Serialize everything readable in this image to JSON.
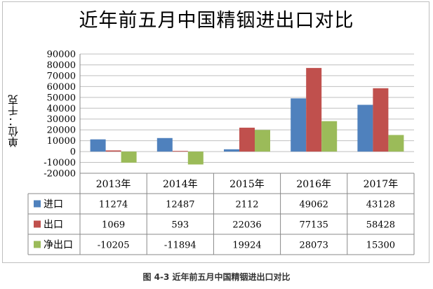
{
  "chart_data": {
    "type": "bar",
    "title": "近年前五月中国精铟进出口对比",
    "ylabel": "单位：千克",
    "ylim": [
      -20000,
      90000
    ],
    "yticks": [
      "90000",
      "80000",
      "70000",
      "60000",
      "50000",
      "40000",
      "30000",
      "20000",
      "10000",
      "0",
      "-10000",
      "-20000"
    ],
    "categories": [
      "2013年",
      "2014年",
      "2015年",
      "2016年",
      "2017年"
    ],
    "grid": true,
    "legend": "data-table",
    "series": [
      {
        "name": "进口",
        "color": "#4f81bd",
        "values": [
          11274,
          12487,
          2112,
          49062,
          43128
        ],
        "labels": [
          "11274",
          "12487",
          "2112",
          "49062",
          "43128"
        ]
      },
      {
        "name": "出口",
        "color": "#c0504d",
        "values": [
          1069,
          593,
          22036,
          77135,
          58428
        ],
        "labels": [
          "1069",
          "593",
          "22036",
          "77135",
          "58428"
        ]
      },
      {
        "name": "净出口",
        "color": "#9bbb59",
        "values": [
          -10205,
          -11894,
          19924,
          28073,
          15300
        ],
        "labels": [
          "-10205",
          "-11894",
          "19924",
          "28073",
          "15300"
        ]
      }
    ]
  },
  "caption": "图 4-3 近年前五月中国精铟进出口对比"
}
